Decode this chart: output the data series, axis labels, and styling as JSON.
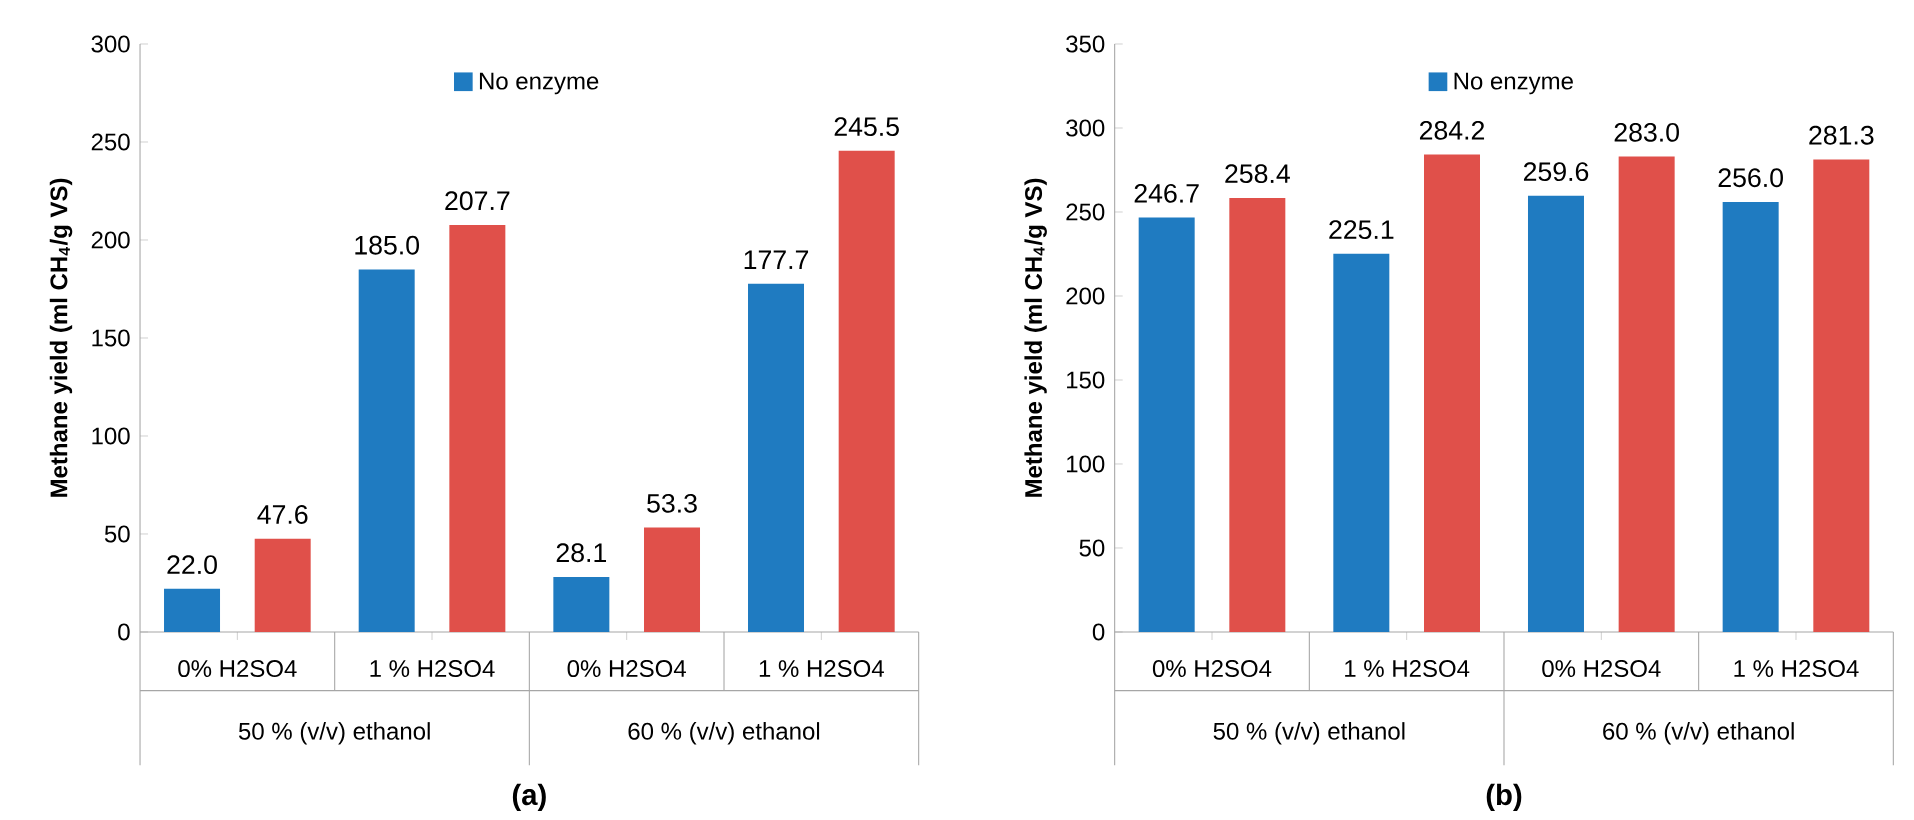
{
  "chart_data": [
    {
      "type": "bar",
      "title": "(a)",
      "ylabel": "Methane yield (ml CH$_{4}$/g VS)",
      "categories": [
        "0% H2SO4",
        "1 % H2SO4",
        "0% H2SO4",
        "1 % H2SO4"
      ],
      "annotations": [
        "50 % (v/v) ethanol",
        "60 % (v/v) ethanol"
      ],
      "series": [
        {
          "name": "No enzyme",
          "color": "#1f7bc1",
          "values": [
            22.0,
            185.0,
            28.1,
            177.7
          ],
          "value_labels": [
            "22.0",
            "185.0",
            "28.1",
            "177.7"
          ]
        },
        {
          "color": "#e0504a",
          "values": [
            47.6,
            207.7,
            53.3,
            245.5
          ],
          "value_labels": [
            "47.6",
            "207.7",
            "53.3",
            "245.5"
          ]
        }
      ],
      "ylim": [
        0,
        300
      ],
      "yticks": [
        0,
        50,
        100,
        150,
        200,
        250,
        300
      ],
      "legend": "top"
    },
    {
      "type": "bar",
      "title": "(b)",
      "ylabel": "Methane yield (ml CH$_{4}$/g VS)",
      "categories": [
        "0% H2SO4",
        "1 % H2SO4",
        "0% H2SO4",
        "1 % H2SO4"
      ],
      "annotations": [
        "50 % (v/v) ethanol",
        "60 % (v/v) ethanol"
      ],
      "series": [
        {
          "name": "No enzyme",
          "color": "#1f7bc1",
          "values": [
            246.7,
            225.1,
            259.6,
            256.0
          ],
          "value_labels": [
            "246.7",
            "225.1",
            "259.6",
            "256.0"
          ]
        },
        {
          "color": "#e0504a",
          "values": [
            258.4,
            284.2,
            283.0,
            281.3
          ],
          "value_labels": [
            "258.4",
            "284.2",
            "283.0",
            "281.3"
          ]
        }
      ],
      "ylim": [
        0,
        350
      ],
      "yticks": [
        0,
        50,
        100,
        150,
        200,
        250,
        300,
        350
      ],
      "legend": "top"
    }
  ]
}
